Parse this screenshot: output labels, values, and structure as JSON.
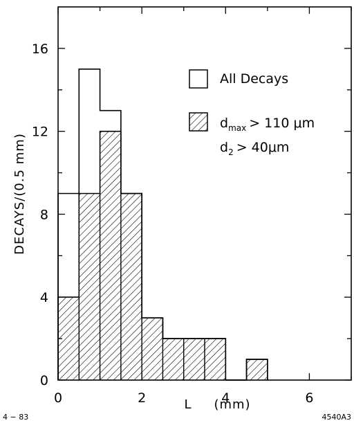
{
  "chart_data": {
    "type": "bar",
    "xlabel": "L",
    "xunit": "(mm)",
    "ylabel": "DECAYS/(0.5 mm)",
    "xlim": [
      0,
      7
    ],
    "ylim": [
      0,
      18
    ],
    "xticks": [
      "0",
      "2",
      "4",
      "6"
    ],
    "yticks": [
      "0",
      "4",
      "8",
      "12",
      "16"
    ],
    "bin_width": 0.5,
    "bin_edges": [
      0,
      0.5,
      1.0,
      1.5,
      2.0,
      2.5,
      3.0,
      3.5,
      4.0,
      4.5,
      5.0
    ],
    "series": [
      {
        "name": "All Decays",
        "style": "open",
        "values": [
          9,
          15,
          13,
          9,
          3,
          2,
          2,
          2,
          0,
          1
        ]
      },
      {
        "name": "d_max > 110 μm, d_2 > 40 μm",
        "style": "hatched",
        "values": [
          4,
          9,
          12,
          9,
          3,
          2,
          2,
          2,
          0,
          1
        ]
      }
    ],
    "legend": {
      "placement": "top-right",
      "entries": [
        {
          "text": "All Decays"
        },
        {
          "line1_main": "d",
          "line1_sub": "max",
          "line1_rest": "> 110 μm",
          "line2_main": "d",
          "line2_sub": "2",
          "line2_rest": "> 40μm"
        }
      ]
    },
    "grid": false
  },
  "footer": {
    "left": "4 − 83",
    "right": "4540A3"
  }
}
